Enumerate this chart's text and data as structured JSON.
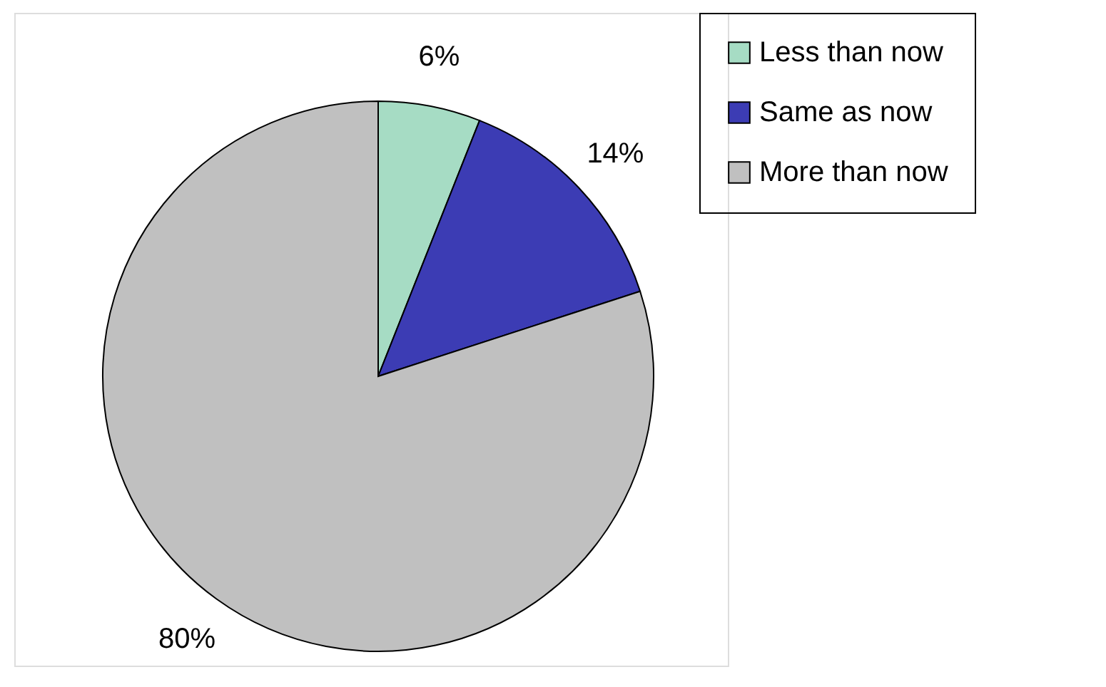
{
  "chart_data": {
    "type": "pie",
    "categories": [
      "Less than now",
      "Same as now",
      "More than now"
    ],
    "values": [
      6,
      14,
      80
    ],
    "colors": [
      "#a6dcc4",
      "#3c3cb4",
      "#c0c0c0"
    ],
    "value_labels": [
      "6%",
      "14%",
      "80%"
    ],
    "legend": "right"
  }
}
